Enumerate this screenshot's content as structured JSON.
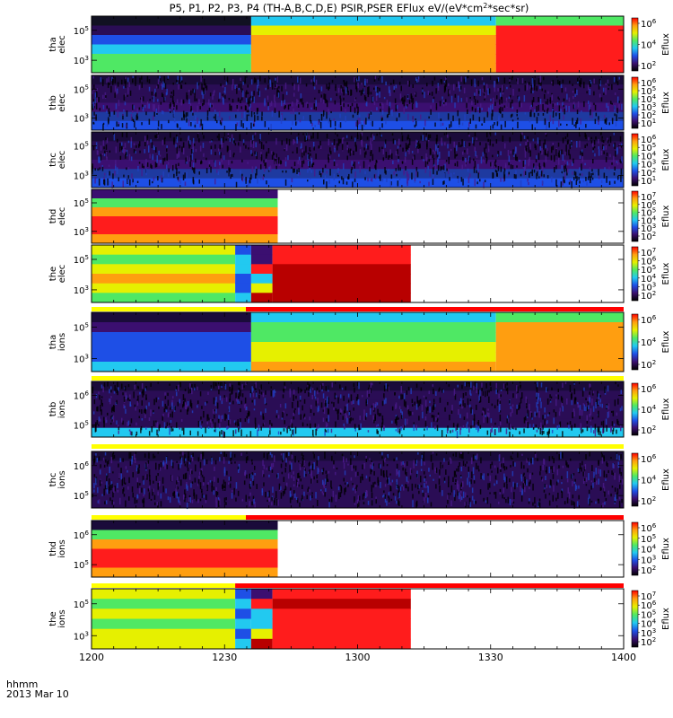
{
  "chart_data": {
    "type": "heatmap",
    "title": "P5, P1, P2, P3, P4 (TH-A,B,C,D,E) PSIR,PSER EFlux eV/(eV*cm",
    "title_sup": "2",
    "title_tail": "*sec*sr)",
    "xlabel_line1": "hhmm",
    "xlabel_line2": "2013 Mar 10",
    "x_ticks": [
      "1200",
      "1230",
      "1300",
      "1330",
      "1400"
    ],
    "x_range": [
      0,
      120
    ],
    "colorbar_label": "Eflux",
    "colors": {
      "purple": "#3b0f70",
      "blue": "#1e4fe6",
      "cyan": "#22c9f0",
      "green": "#4fe864",
      "yellow": "#e6f000",
      "orange": "#ff9e10",
      "red": "#ff1c1c",
      "darkred": "#b80000",
      "bar_yellow": "#ffff00",
      "bar_red": "#ff0000"
    },
    "panels": [
      {
        "id": "tha-elec",
        "ylabel": [
          "tha",
          "elec"
        ],
        "ytick_labels": [
          {
            "base": "10",
            "exp": "5"
          },
          {
            "base": "10",
            "exp": "3"
          }
        ],
        "cbar_labels": [
          {
            "base": "10",
            "exp": "6"
          },
          {
            "base": "10",
            "exp": "4"
          },
          {
            "base": "10",
            "exp": "2"
          }
        ],
        "segments": [
          {
            "t0": 0,
            "t1": 0.3,
            "levels": [
              "#111122",
              "#2a0d55",
              "#1e4fe6",
              "#22c9f0",
              "#4fe864",
              "#4fe864"
            ]
          },
          {
            "t0": 0.3,
            "t1": 0.76,
            "levels": [
              "#22c9f0",
              "#e6f000",
              "#ff9e10",
              "#ff9e10",
              "#ff9e10",
              "#ff9e10"
            ]
          },
          {
            "t0": 0.76,
            "t1": 1,
            "levels": [
              "#4fe864",
              "#ff1c1c",
              "#ff1c1c",
              "#ff1c1c",
              "#ff1c1c",
              "#ff1c1c"
            ]
          }
        ]
      },
      {
        "id": "thb-elec",
        "ylabel": [
          "thb",
          "elec"
        ],
        "ytick_labels": [
          {
            "base": "10",
            "exp": "5"
          },
          {
            "base": "10",
            "exp": "3"
          }
        ],
        "cbar_labels": [
          {
            "base": "10",
            "exp": "6"
          },
          {
            "base": "10",
            "exp": "5"
          },
          {
            "base": "10",
            "exp": "4"
          },
          {
            "base": "10",
            "exp": "3"
          },
          {
            "base": "10",
            "exp": "2"
          },
          {
            "base": "10",
            "exp": "1"
          }
        ],
        "segments": [
          {
            "t0": 0,
            "t1": 1,
            "levels": [
              "#1a0b3a",
              "#2a0d55",
              "#2a0d55",
              "#3b0f70",
              "#1e3aa0",
              "#1e4fe6"
            ]
          }
        ]
      },
      {
        "id": "thc-elec",
        "ylabel": [
          "thc",
          "elec"
        ],
        "ytick_labels": [
          {
            "base": "10",
            "exp": "5"
          },
          {
            "base": "10",
            "exp": "3"
          }
        ],
        "cbar_labels": [
          {
            "base": "10",
            "exp": "6"
          },
          {
            "base": "10",
            "exp": "5"
          },
          {
            "base": "10",
            "exp": "4"
          },
          {
            "base": "10",
            "exp": "3"
          },
          {
            "base": "10",
            "exp": "2"
          },
          {
            "base": "10",
            "exp": "1"
          }
        ],
        "segments": [
          {
            "t0": 0,
            "t1": 1,
            "levels": [
              "#1a0b3a",
              "#2a0d55",
              "#2a0d55",
              "#3b0f70",
              "#1e3aa0",
              "#1e4fe6"
            ]
          }
        ]
      },
      {
        "id": "thd-elec",
        "ylabel": [
          "thd",
          "elec"
        ],
        "ytick_labels": [
          {
            "base": "10",
            "exp": "5"
          },
          {
            "base": "10",
            "exp": "3"
          }
        ],
        "cbar_labels": [
          {
            "base": "10",
            "exp": "7"
          },
          {
            "base": "10",
            "exp": "6"
          },
          {
            "base": "10",
            "exp": "5"
          },
          {
            "base": "10",
            "exp": "4"
          },
          {
            "base": "10",
            "exp": "3"
          },
          {
            "base": "10",
            "exp": "2"
          }
        ],
        "segments": [
          {
            "t0": 0,
            "t1": 0.35,
            "levels": [
              "#3b0f70",
              "#4fe864",
              "#ff9e10",
              "#ff1c1c",
              "#ff1c1c",
              "#ff9e10"
            ]
          }
        ]
      },
      {
        "id": "the-elec",
        "ylabel": [
          "the",
          "elec"
        ],
        "ytick_labels": [
          {
            "base": "10",
            "exp": "5"
          },
          {
            "base": "10",
            "exp": "3"
          }
        ],
        "cbar_labels": [
          {
            "base": "10",
            "exp": "7"
          },
          {
            "base": "10",
            "exp": "6"
          },
          {
            "base": "10",
            "exp": "5"
          },
          {
            "base": "10",
            "exp": "4"
          },
          {
            "base": "10",
            "exp": "3"
          },
          {
            "base": "10",
            "exp": "2"
          }
        ],
        "segments": [
          {
            "t0": 0,
            "t1": 0.27,
            "levels": [
              "#e6f000",
              "#4fe864",
              "#e6f000",
              "#ff9e10",
              "#e6f000",
              "#4fe864"
            ]
          },
          {
            "t0": 0.27,
            "t1": 0.3,
            "levels": [
              "#1e4fe6",
              "#22c9f0",
              "#22c9f0",
              "#1e4fe6",
              "#1e4fe6",
              "#22c9f0"
            ]
          },
          {
            "t0": 0.3,
            "t1": 0.34,
            "levels": [
              "#3b0f70",
              "#3b0f70",
              "#ff1c1c",
              "#22c9f0",
              "#e6f000",
              "#b80000"
            ]
          },
          {
            "t0": 0.34,
            "t1": 0.6,
            "levels": [
              "#ff1c1c",
              "#ff1c1c",
              "#b80000",
              "#b80000",
              "#b80000",
              "#b80000"
            ]
          }
        ]
      },
      {
        "id": "tha-ions",
        "ylabel": [
          "tha",
          "ions"
        ],
        "ytick_labels": [
          {
            "base": "10",
            "exp": "5"
          },
          {
            "base": "10",
            "exp": "3"
          }
        ],
        "cbar_labels": [
          {
            "base": "10",
            "exp": "6"
          },
          {
            "base": "10",
            "exp": "4"
          },
          {
            "base": "10",
            "exp": "2"
          }
        ],
        "segments": [
          {
            "t0": 0,
            "t1": 0.3,
            "levels": [
              "#1a0b3a",
              "#3b0f70",
              "#1e4fe6",
              "#1e4fe6",
              "#1e4fe6",
              "#22c9f0"
            ]
          },
          {
            "t0": 0.3,
            "t1": 0.76,
            "levels": [
              "#22c9f0",
              "#4fe864",
              "#4fe864",
              "#e6f000",
              "#e6f000",
              "#ff9e10"
            ]
          },
          {
            "t0": 0.76,
            "t1": 1,
            "levels": [
              "#4fe864",
              "#ff9e10",
              "#ff9e10",
              "#ff9e10",
              "#ff9e10",
              "#ff9e10"
            ]
          }
        ]
      },
      {
        "id": "thb-ions",
        "ylabel": [
          "thb",
          "ions"
        ],
        "ytick_labels": [
          {
            "base": "10",
            "exp": "6"
          },
          {
            "base": "10",
            "exp": "5"
          }
        ],
        "cbar_labels": [
          {
            "base": "10",
            "exp": "6"
          },
          {
            "base": "10",
            "exp": "4"
          },
          {
            "base": "10",
            "exp": "2"
          }
        ],
        "segments": [
          {
            "t0": 0,
            "t1": 1,
            "levels": [
              "#1a0b3a",
              "#2a0d55",
              "#2a0d55",
              "#2a0d55",
              "#2a0d55",
              "#22c9f0"
            ]
          }
        ]
      },
      {
        "id": "thc-ions",
        "ylabel": [
          "thc",
          "ions"
        ],
        "ytick_labels": [
          {
            "base": "10",
            "exp": "6"
          },
          {
            "base": "10",
            "exp": "5"
          }
        ],
        "cbar_labels": [
          {
            "base": "10",
            "exp": "6"
          },
          {
            "base": "10",
            "exp": "4"
          },
          {
            "base": "10",
            "exp": "2"
          }
        ],
        "segments": [
          {
            "t0": 0,
            "t1": 1,
            "levels": [
              "#1a0b3a",
              "#2a0d55",
              "#2a0d55",
              "#2a0d55",
              "#2a0d55",
              "#2a0d55"
            ]
          }
        ]
      },
      {
        "id": "thd-ions",
        "ylabel": [
          "thd",
          "ions"
        ],
        "ytick_labels": [
          {
            "base": "10",
            "exp": "6"
          },
          {
            "base": "10",
            "exp": "5"
          }
        ],
        "cbar_labels": [
          {
            "base": "10",
            "exp": "6"
          },
          {
            "base": "10",
            "exp": "5"
          },
          {
            "base": "10",
            "exp": "4"
          },
          {
            "base": "10",
            "exp": "3"
          },
          {
            "base": "10",
            "exp": "2"
          }
        ],
        "segments": [
          {
            "t0": 0,
            "t1": 0.35,
            "levels": [
              "#1a0b3a",
              "#4fe864",
              "#ff9e10",
              "#ff1c1c",
              "#ff1c1c",
              "#ff9e10"
            ]
          }
        ]
      },
      {
        "id": "the-ions",
        "ylabel": [
          "the",
          "ions"
        ],
        "ytick_labels": [
          {
            "base": "10",
            "exp": "5"
          },
          {
            "base": "10",
            "exp": "3"
          }
        ],
        "cbar_labels": [
          {
            "base": "10",
            "exp": "7"
          },
          {
            "base": "10",
            "exp": "6"
          },
          {
            "base": "10",
            "exp": "5"
          },
          {
            "base": "10",
            "exp": "4"
          },
          {
            "base": "10",
            "exp": "3"
          },
          {
            "base": "10",
            "exp": "2"
          }
        ],
        "segments": [
          {
            "t0": 0,
            "t1": 0.27,
            "levels": [
              "#e6f000",
              "#4fe864",
              "#e6f000",
              "#4fe864",
              "#e6f000",
              "#e6f000"
            ]
          },
          {
            "t0": 0.27,
            "t1": 0.3,
            "levels": [
              "#1e4fe6",
              "#22c9f0",
              "#1e4fe6",
              "#22c9f0",
              "#1e4fe6",
              "#22c9f0"
            ]
          },
          {
            "t0": 0.3,
            "t1": 0.34,
            "levels": [
              "#3b0f70",
              "#ff1c1c",
              "#22c9f0",
              "#22c9f0",
              "#e6f000",
              "#b80000"
            ]
          },
          {
            "t0": 0.34,
            "t1": 0.6,
            "levels": [
              "#ff1c1c",
              "#b80000",
              "#ff1c1c",
              "#ff1c1c",
              "#ff1c1c",
              "#ff1c1c"
            ]
          }
        ]
      }
    ],
    "mode_bars": [
      {
        "after_panel": "the-elec",
        "yellow_until": 0.29,
        "red_until": 1
      },
      {
        "after_panel": "tha-ions",
        "yellow_until": 1,
        "red_until": 1
      },
      {
        "after_panel": "thb-ions",
        "yellow_until": 1,
        "red_until": 1
      },
      {
        "after_panel": "thc-ions",
        "yellow_until": 0.29,
        "red_until": 1
      },
      {
        "after_panel": "thd-ions",
        "yellow_until": 0.27,
        "red_until": 1
      }
    ]
  }
}
